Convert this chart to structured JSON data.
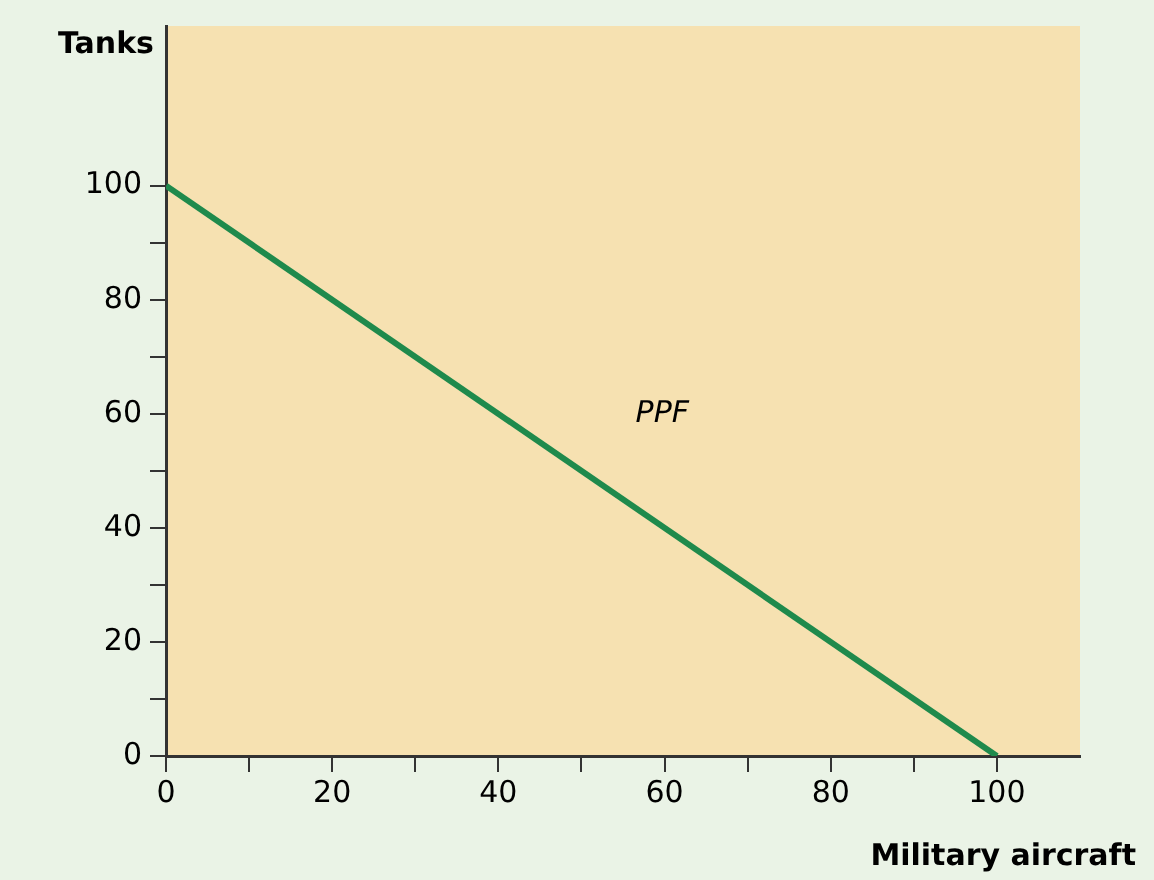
{
  "chart_data": {
    "type": "line",
    "xlabel": "Military aircraft",
    "ylabel": "Tanks",
    "x": [
      0,
      100
    ],
    "series": [
      {
        "color": "#1f8a4c",
        "values": [
          100,
          0
        ]
      }
    ],
    "annotations": [
      "PPF"
    ],
    "xlim": [
      0,
      110
    ],
    "ylim": [
      0,
      128
    ],
    "xticks": [
      0,
      {
        "value": 10,
        "label": null
      },
      20,
      {
        "value": 30,
        "label": null
      },
      40,
      {
        "value": 50,
        "label": null
      },
      60,
      {
        "value": 70,
        "label": null
      },
      80,
      {
        "value": 90,
        "label": null
      },
      100
    ],
    "yticks": [
      0,
      {
        "value": 10,
        "label": null
      },
      20,
      {
        "value": 30,
        "label": null
      },
      40,
      {
        "value": 50,
        "label": null
      },
      60,
      {
        "value": 70,
        "label": null
      },
      80,
      {
        "value": 90,
        "label": null
      },
      100
    ],
    "grid": false,
    "legend": false,
    "marker": "none",
    "line_style": "solid"
  }
}
